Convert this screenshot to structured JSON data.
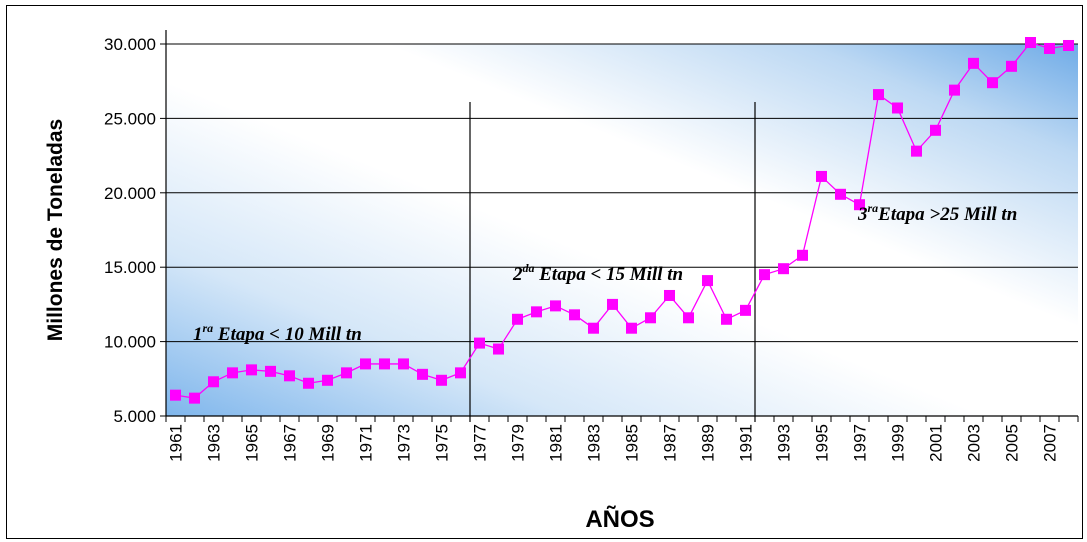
{
  "chart_data": {
    "type": "line",
    "title": "",
    "xlabel": "AÑOS",
    "ylabel": "Millones de Toneladas",
    "ylim": [
      5000,
      30000
    ],
    "yticks": [
      "5.000",
      "10.000",
      "15.000",
      "20.000",
      "25.000",
      "30.000"
    ],
    "x": [
      1961,
      1962,
      1963,
      1964,
      1965,
      1966,
      1967,
      1968,
      1969,
      1970,
      1971,
      1972,
      1973,
      1974,
      1975,
      1976,
      1977,
      1978,
      1979,
      1980,
      1981,
      1982,
      1983,
      1984,
      1985,
      1986,
      1987,
      1988,
      1989,
      1990,
      1991,
      1992,
      1993,
      1994,
      1995,
      1996,
      1997,
      1998,
      1999,
      2000,
      2001,
      2002,
      2003,
      2004,
      2005,
      2006,
      2007,
      2008
    ],
    "xtick_labels": [
      "1961",
      "1963",
      "1965",
      "1967",
      "1969",
      "1971",
      "1973",
      "1975",
      "1977",
      "1979",
      "1981",
      "1983",
      "1985",
      "1987",
      "1989",
      "1991",
      "1993",
      "1995",
      "1997",
      "1999",
      "2001",
      "2003",
      "2005",
      "2007"
    ],
    "series": [
      {
        "values": [
          6400,
          6200,
          7300,
          7900,
          8100,
          8000,
          7700,
          7200,
          7400,
          7900,
          8500,
          8500,
          8500,
          7800,
          7400,
          7900,
          9900,
          9500,
          11500,
          12000,
          12400,
          11800,
          10900,
          12500,
          10900,
          11600,
          13100,
          11600,
          14100,
          11500,
          12100,
          14500,
          14900,
          15800,
          21100,
          19900,
          19200,
          26600,
          25700,
          22800,
          24200,
          26900,
          28700,
          27400,
          28500,
          30100,
          29700,
          29900
        ],
        "color": "#ff00ff"
      }
    ],
    "stage_dividers": [
      1976.5,
      1991.5
    ],
    "annotations": [
      {
        "pre": "1",
        "sup": "ra",
        "post": " Etapa < 10 Mill tn"
      },
      {
        "pre": "2",
        "sup": "da",
        "post": " Etapa < 15 Mill tn"
      },
      {
        "pre": "3",
        "sup": "ra",
        "post": "Etapa >25 Mill tn"
      }
    ],
    "grid": true,
    "legend": "none"
  }
}
